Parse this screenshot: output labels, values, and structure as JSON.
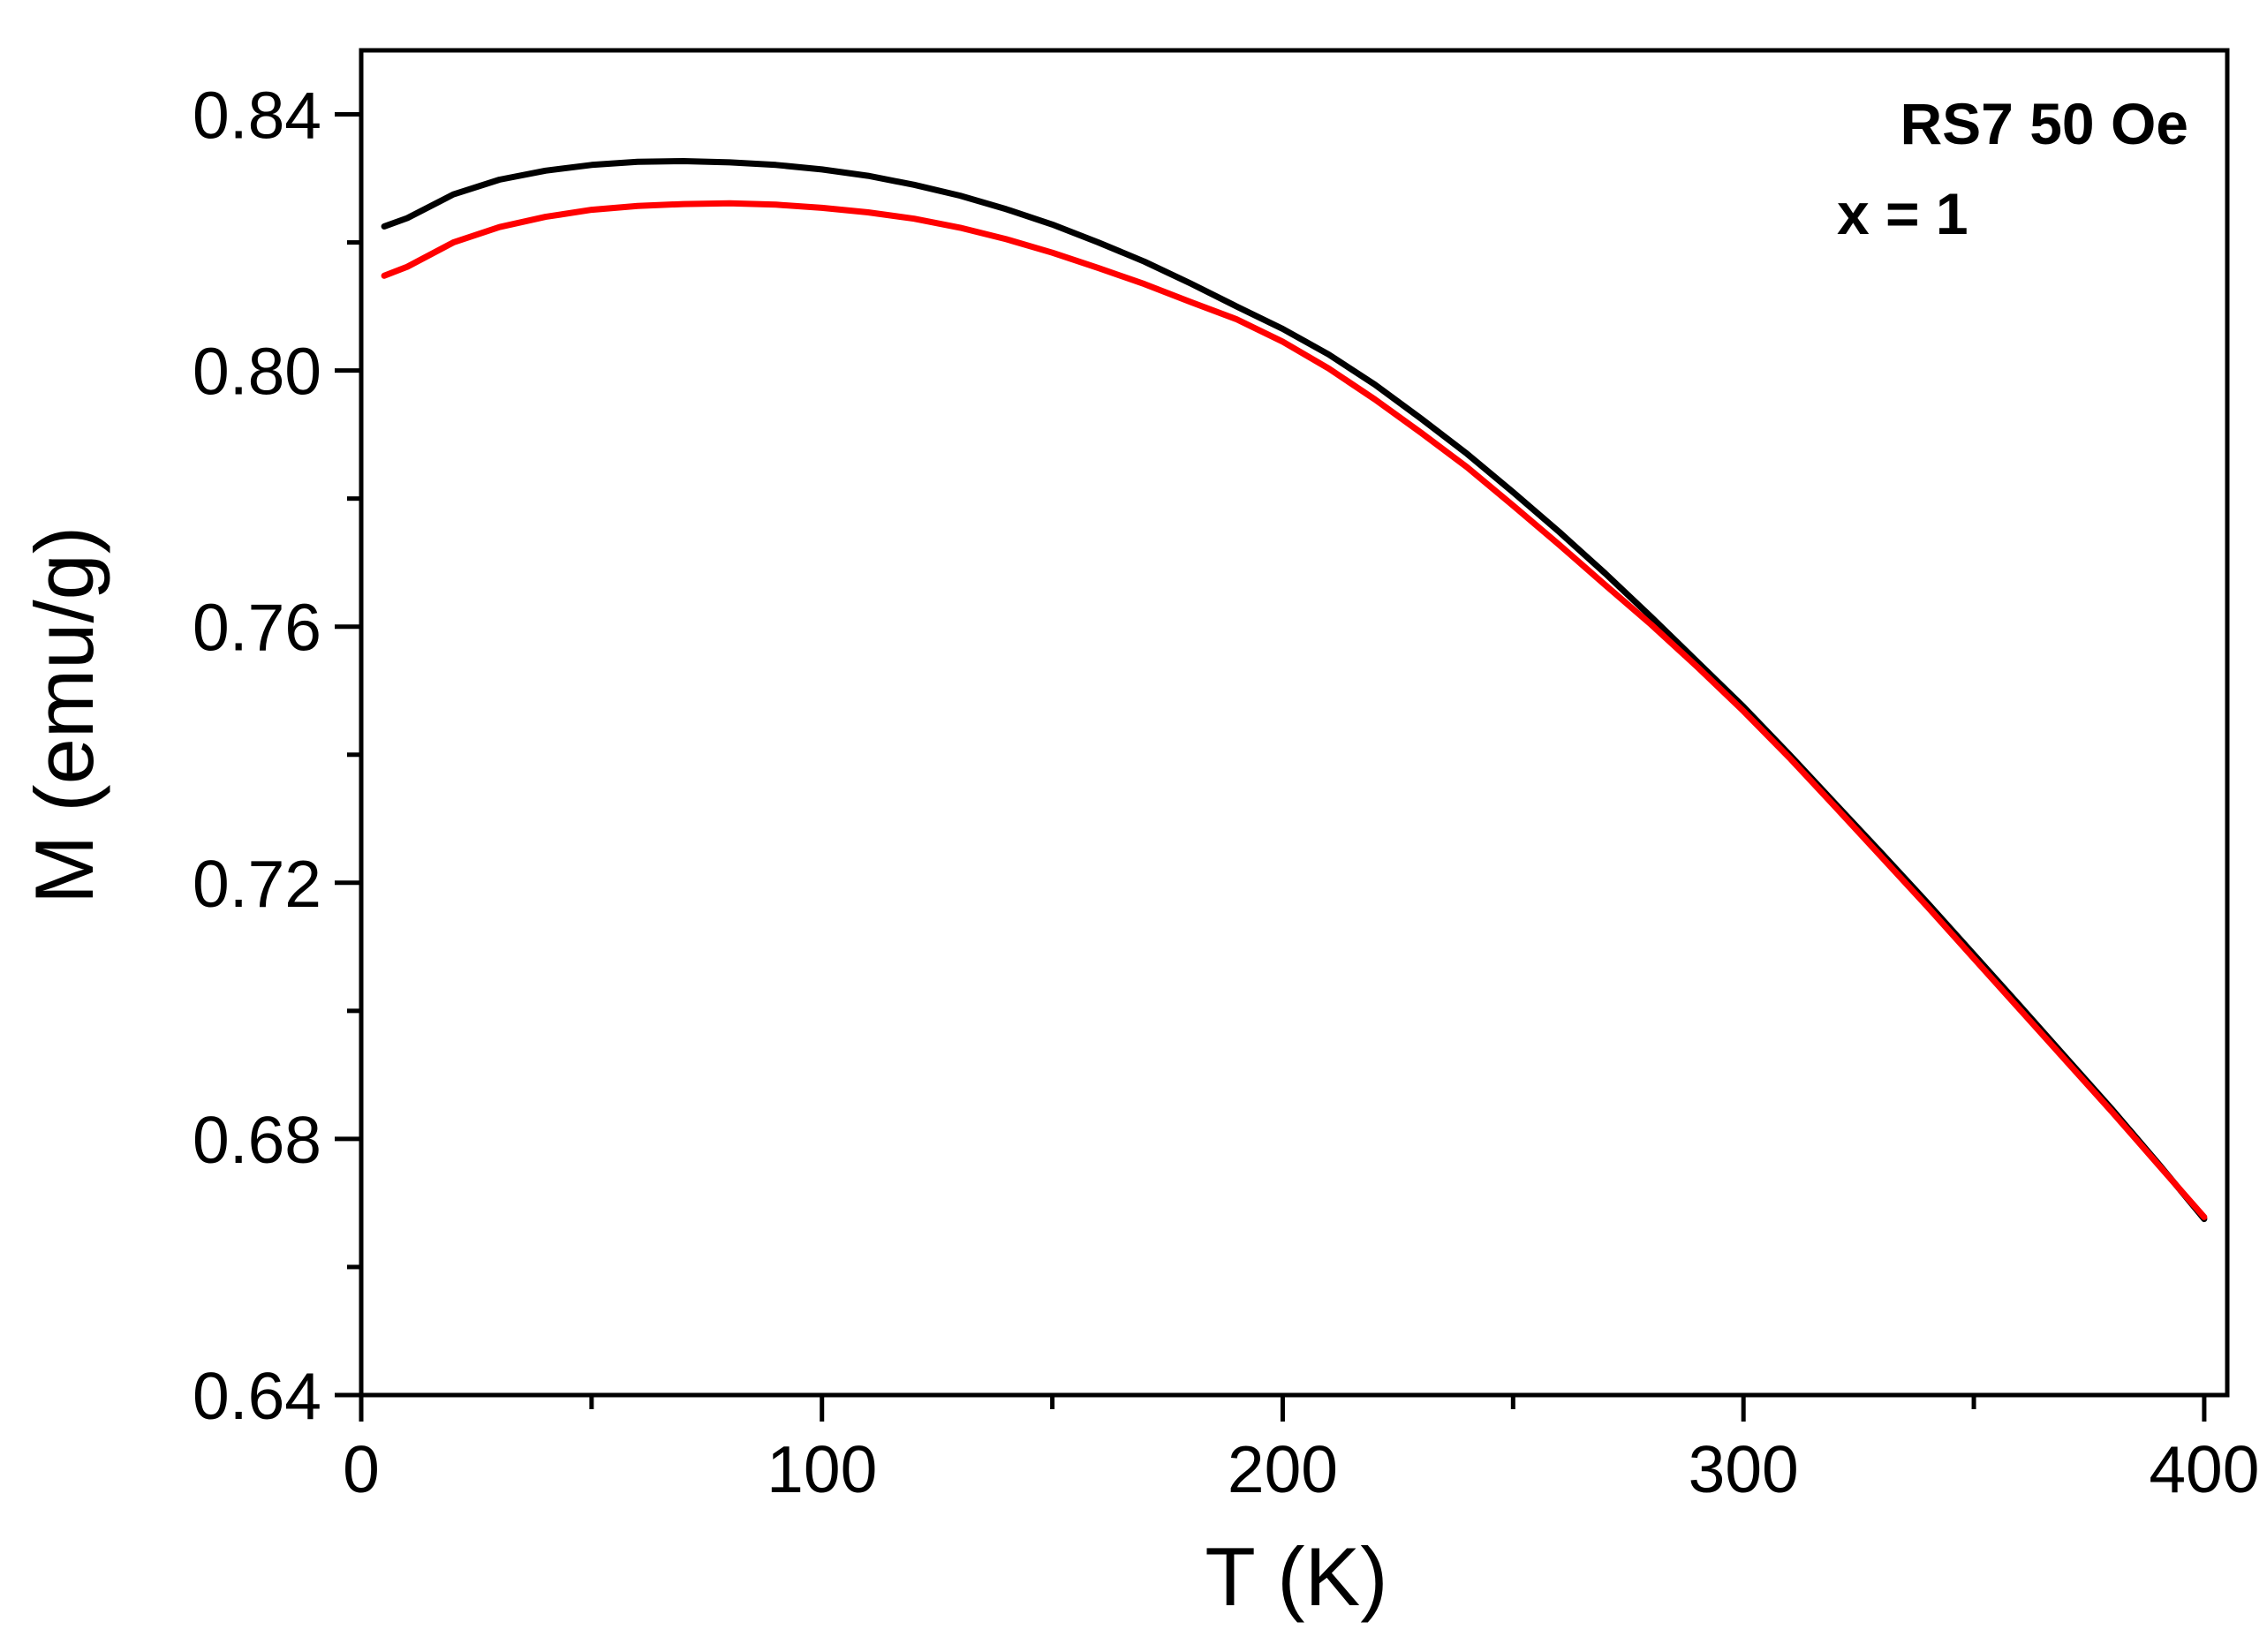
{
  "chart_data": {
    "type": "line",
    "title": "",
    "xlabel": "T (K)",
    "ylabel": "M (emu/g)",
    "xlim": [
      0,
      405
    ],
    "ylim": [
      0.64,
      0.85
    ],
    "xticks": [
      0,
      100,
      200,
      300,
      400
    ],
    "xtick_labels": [
      "0",
      "100",
      "200",
      "300",
      "400"
    ],
    "x_minor_ticks": [
      50,
      150,
      250,
      350
    ],
    "yticks": [
      0.64,
      0.68,
      0.72,
      0.76,
      0.8,
      0.84
    ],
    "ytick_labels": [
      "0.64",
      "0.68",
      "0.72",
      "0.76",
      "0.80",
      "0.84"
    ],
    "y_minor_ticks": [
      0.66,
      0.7,
      0.74,
      0.78,
      0.82
    ],
    "grid": false,
    "annotations": [
      "RS7 50 Oe",
      "x = 1"
    ],
    "series": [
      {
        "name": "black curve",
        "color": "#000000",
        "x": [
          5,
          10,
          20,
          30,
          40,
          50,
          60,
          70,
          80,
          90,
          100,
          110,
          120,
          130,
          140,
          150,
          160,
          170,
          180,
          190,
          200,
          210,
          220,
          230,
          240,
          250,
          260,
          270,
          280,
          290,
          300,
          310,
          320,
          330,
          340,
          350,
          360,
          370,
          380,
          390,
          400
        ],
        "y": [
          0.8225,
          0.8238,
          0.8275,
          0.8298,
          0.8312,
          0.8321,
          0.8326,
          0.8327,
          0.8325,
          0.8321,
          0.8314,
          0.8304,
          0.829,
          0.8273,
          0.8252,
          0.8228,
          0.82,
          0.817,
          0.8136,
          0.81,
          0.8065,
          0.8025,
          0.7978,
          0.7925,
          0.787,
          0.781,
          0.7748,
          0.7683,
          0.7615,
          0.7545,
          0.7475,
          0.74,
          0.7323,
          0.7246,
          0.7168,
          0.7088,
          0.7008,
          0.6927,
          0.6846,
          0.6762,
          0.6675
        ]
      },
      {
        "name": "red curve",
        "color": "#ff0000",
        "x": [
          5,
          10,
          20,
          30,
          40,
          50,
          60,
          70,
          80,
          90,
          100,
          110,
          120,
          130,
          140,
          150,
          160,
          170,
          180,
          190,
          200,
          210,
          220,
          230,
          240,
          250,
          260,
          270,
          280,
          290,
          300,
          310,
          320,
          330,
          340,
          350,
          360,
          370,
          380,
          390,
          400
        ],
        "y": [
          0.8148,
          0.8162,
          0.82,
          0.8224,
          0.824,
          0.8251,
          0.8257,
          0.826,
          0.8261,
          0.8259,
          0.8254,
          0.8247,
          0.8237,
          0.8223,
          0.8205,
          0.8184,
          0.816,
          0.8135,
          0.8107,
          0.808,
          0.8045,
          0.8003,
          0.7955,
          0.7903,
          0.7849,
          0.7789,
          0.7728,
          0.7665,
          0.7603,
          0.7537,
          0.7468,
          0.7395,
          0.7318,
          0.724,
          0.7162,
          0.7082,
          0.7002,
          0.6922,
          0.6842,
          0.676,
          0.6678
        ]
      }
    ]
  }
}
